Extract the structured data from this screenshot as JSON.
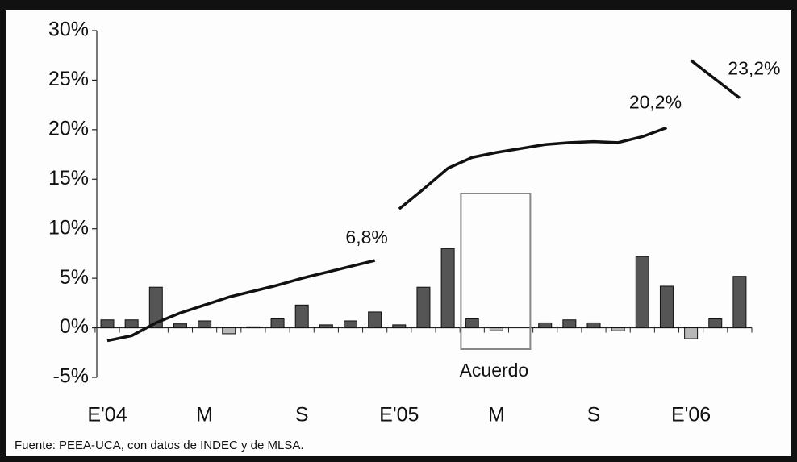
{
  "chart_data": {
    "type": "bar-line",
    "categories": [
      "E'04",
      null,
      null,
      null,
      "M",
      null,
      null,
      null,
      "S",
      null,
      null,
      null,
      "E'05",
      null,
      null,
      null,
      "M",
      null,
      null,
      null,
      "S",
      null,
      null,
      null,
      "E'06",
      null,
      null
    ],
    "bars": {
      "color": "#555555",
      "negative_color": "#b8b8b8",
      "values": [
        0.8,
        0.8,
        4.1,
        0.4,
        0.7,
        -0.6,
        0.1,
        0.9,
        2.3,
        0.3,
        0.7,
        1.6,
        0.3,
        4.1,
        8.0,
        0.9,
        -0.3,
        0,
        0.5,
        0.8,
        0.5,
        -0.3,
        7.2,
        4.2,
        -1.1,
        0.9,
        5.2
      ]
    },
    "lines": [
      {
        "color": "#111111",
        "values": [
          -1.3,
          -0.8,
          0.5,
          1.5,
          2.3,
          3.1,
          3.7,
          4.3,
          5.0,
          5.6,
          6.2,
          6.8,
          null,
          null,
          null,
          null,
          null,
          null,
          null,
          null,
          null,
          null,
          null,
          null,
          null,
          null,
          null
        ],
        "value_labels": [
          null,
          null,
          null,
          null,
          null,
          null,
          null,
          null,
          null,
          null,
          null,
          "6,8%",
          null,
          null,
          null,
          null,
          null,
          null,
          null,
          null,
          null,
          null,
          null,
          null,
          null,
          null,
          null
        ]
      },
      {
        "color": "#111111",
        "values": [
          null,
          null,
          null,
          null,
          null,
          null,
          null,
          null,
          null,
          null,
          null,
          null,
          12.0,
          14.0,
          16.1,
          17.2,
          17.7,
          18.1,
          18.5,
          18.7,
          18.8,
          18.7,
          19.3,
          20.2,
          null,
          null,
          null
        ],
        "value_labels": [
          null,
          null,
          null,
          null,
          null,
          null,
          null,
          null,
          null,
          null,
          null,
          null,
          null,
          null,
          null,
          null,
          null,
          null,
          null,
          null,
          null,
          null,
          null,
          "20,2%",
          null,
          null,
          null
        ]
      },
      {
        "color": "#111111",
        "values": [
          null,
          null,
          null,
          null,
          null,
          null,
          null,
          null,
          null,
          null,
          null,
          null,
          null,
          null,
          null,
          null,
          null,
          null,
          null,
          null,
          null,
          null,
          null,
          null,
          27.0,
          25.1,
          23.2
        ],
        "value_labels": [
          null,
          null,
          null,
          null,
          null,
          null,
          null,
          null,
          null,
          null,
          null,
          null,
          null,
          null,
          null,
          null,
          null,
          null,
          null,
          null,
          null,
          null,
          null,
          null,
          null,
          null,
          "23,2%"
        ]
      }
    ],
    "ylim": [
      -5,
      30
    ],
    "yticks": [
      {
        "value": -5,
        "label": "-5%"
      },
      {
        "value": 0,
        "label": "0%"
      },
      {
        "value": 5,
        "label": "5%"
      },
      {
        "value": 10,
        "label": "10%"
      },
      {
        "value": 15,
        "label": "15%"
      },
      {
        "value": 20,
        "label": "20%"
      },
      {
        "value": 25,
        "label": "25%"
      },
      {
        "value": 30,
        "label": "30%"
      }
    ],
    "annotation": "Acuerdo",
    "source": "Fuente: PEEA-UCA, con datos de INDEC y de MLSA."
  }
}
